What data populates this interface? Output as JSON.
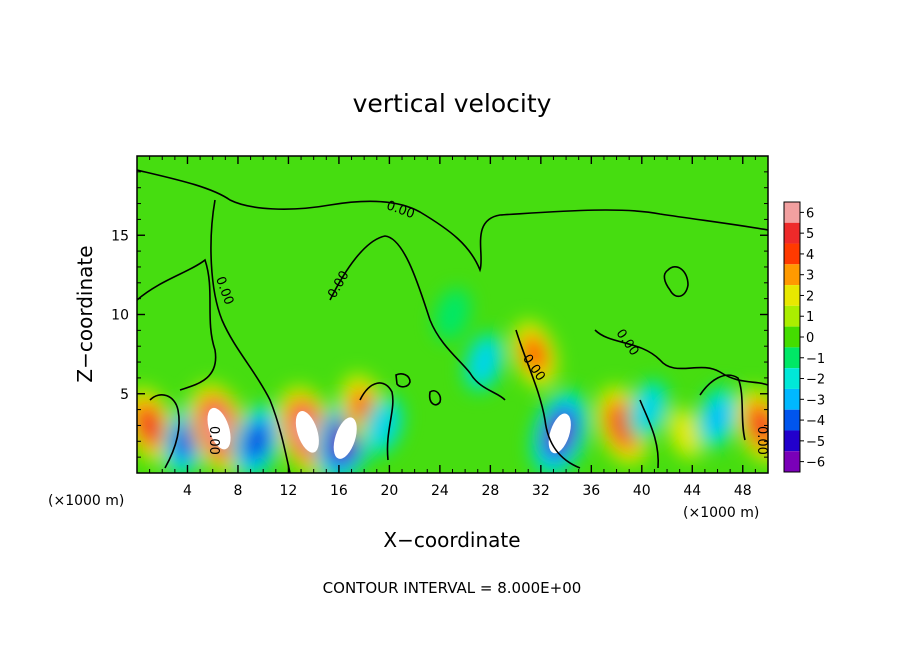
{
  "chart_data": {
    "type": "heatmap",
    "title": "vertical velocity",
    "xlabel": "X−coordinate",
    "ylabel": "Z−coordinate",
    "x_unit_left": "(×1000 m)",
    "x_unit_right": "(×1000 m)",
    "xlim": [
      0,
      50
    ],
    "ylim": [
      0,
      20
    ],
    "xticks": [
      4,
      8,
      12,
      16,
      20,
      24,
      28,
      32,
      36,
      40,
      44,
      48
    ],
    "yticks": [
      5,
      10,
      15
    ],
    "colorbar": {
      "levels": [
        6,
        5,
        4,
        3,
        2,
        1,
        0,
        -1,
        -2,
        -3,
        -4,
        -5,
        -6
      ],
      "colors": [
        "#f2a0a0",
        "#ee2a2a",
        "#ff3a00",
        "#ff9a00",
        "#e8e800",
        "#aaee00",
        "#44dd00",
        "#00e866",
        "#00e8d8",
        "#00b8ff",
        "#0055ee",
        "#2200cc",
        "#7a00b8"
      ]
    },
    "contour_label": "0.00",
    "contour_interval_text": "CONTOUR INTERVAL = 8.000E+00",
    "features": [
      {
        "x": 1,
        "z": 3.0,
        "w": 4.5
      },
      {
        "x": 4,
        "z": 2.2,
        "w": -4.5
      },
      {
        "x": 6.5,
        "z": 2.8,
        "w": 6.5
      },
      {
        "x": 9.5,
        "z": 2.0,
        "w": -4.5
      },
      {
        "x": 13.5,
        "z": 2.6,
        "w": 6.5
      },
      {
        "x": 16.5,
        "z": 2.2,
        "w": -6.5
      },
      {
        "x": 18,
        "z": 4.0,
        "w": 4.0
      },
      {
        "x": 19.5,
        "z": 3.0,
        "w": -2.5
      },
      {
        "x": 31.5,
        "z": 7.5,
        "w": 3.5
      },
      {
        "x": 33.5,
        "z": 2.5,
        "w": -6.0
      },
      {
        "x": 38.5,
        "z": 3.0,
        "w": 5.0
      },
      {
        "x": 40.5,
        "z": 4.0,
        "w": -2.5
      },
      {
        "x": 43.5,
        "z": 2.5,
        "w": 1.5
      },
      {
        "x": 46,
        "z": 3.5,
        "w": -3.0
      },
      {
        "x": 49.5,
        "z": 3.0,
        "w": 4.5
      },
      {
        "x": 27.5,
        "z": 7.0,
        "w": -2.5
      },
      {
        "x": 25,
        "z": 10.0,
        "w": -1.2
      }
    ]
  }
}
